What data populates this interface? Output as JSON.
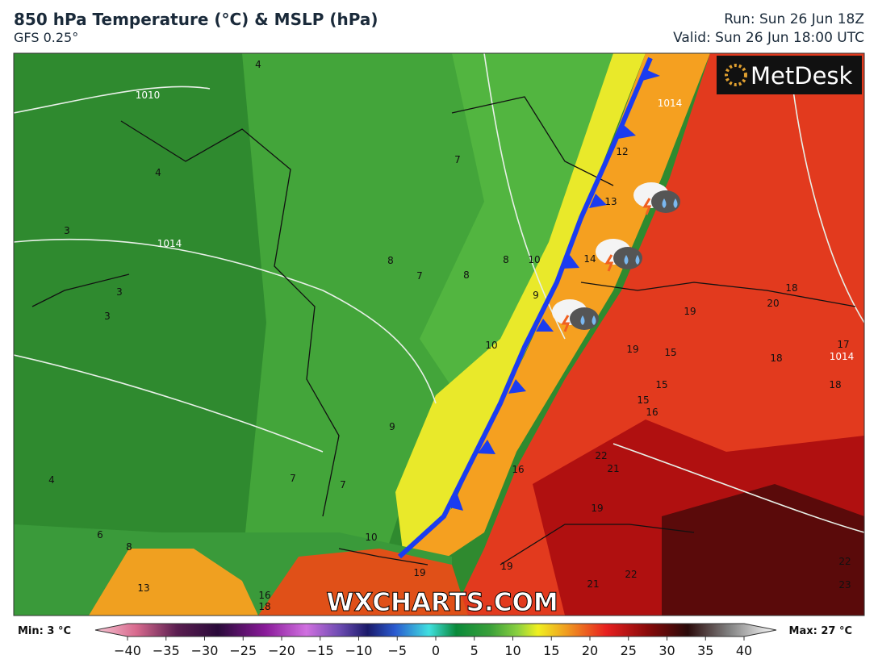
{
  "header": {
    "title": "850 hPa Temperature (°C) & MSLP (hPa)",
    "subtitle": "GFS 0.25°",
    "run": "Run: Sun 26 Jun 18Z",
    "valid": "Valid: Sun 26 Jun 18:00 UTC"
  },
  "logo": "MetDesk",
  "watermark": "WXCHARTS.COM",
  "map": {
    "isobar_labels": [
      "1010",
      "1014",
      "1014",
      "1014"
    ],
    "temperature_labels": [
      4,
      4,
      3,
      3,
      3,
      8,
      7,
      8,
      8,
      10,
      9,
      10,
      7,
      9,
      7,
      7,
      4,
      6,
      8,
      13,
      10,
      16,
      12,
      13,
      14,
      16,
      19,
      18,
      19,
      15,
      15,
      15,
      16,
      22,
      21,
      19,
      19,
      21,
      22,
      19,
      20,
      18,
      18,
      17,
      18,
      22,
      23
    ]
  },
  "colorbar": {
    "min": "Min: 3 °C",
    "max": "Max: 27 °C",
    "ticks": [
      {
        "value": -40,
        "label": "−40"
      },
      {
        "value": -35,
        "label": "−35"
      },
      {
        "value": -30,
        "label": "−30"
      },
      {
        "value": -25,
        "label": "−25"
      },
      {
        "value": -20,
        "label": "−20"
      },
      {
        "value": -15,
        "label": "−15"
      },
      {
        "value": -10,
        "label": "−10"
      },
      {
        "value": -5,
        "label": "−5"
      },
      0,
      5,
      10,
      15,
      20,
      25,
      30,
      35,
      40
    ],
    "range": [
      -40,
      40
    ]
  }
}
